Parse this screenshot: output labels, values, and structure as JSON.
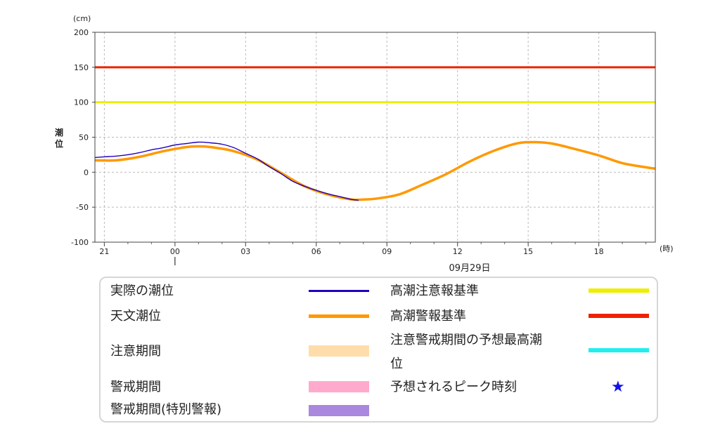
{
  "chart_data": {
    "type": "line",
    "y_unit": "(cm)",
    "x_unit": "(時)",
    "ylabel": "潮位",
    "ylim": [
      -100,
      200
    ],
    "yticks": [
      -100,
      -50,
      0,
      50,
      100,
      150,
      200
    ],
    "xlim": [
      -3.4,
      20.4
    ],
    "x_ticks": [
      {
        "hour": -3,
        "label": "21"
      },
      {
        "hour": 0,
        "label": "00"
      },
      {
        "hour": 3,
        "label": "03"
      },
      {
        "hour": 6,
        "label": "06"
      },
      {
        "hour": 9,
        "label": "09"
      },
      {
        "hour": 12,
        "label": "12"
      },
      {
        "hour": 15,
        "label": "15"
      },
      {
        "hour": 18,
        "label": "18"
      }
    ],
    "date_label": "09月29日",
    "date_marker_hour": 0,
    "grid": true,
    "thresholds": [
      {
        "name": "高潮警報基準",
        "value": 150,
        "color": "#ee2200"
      },
      {
        "name": "高潮注意報基準",
        "value": 100,
        "color": "#eeee00"
      }
    ],
    "series": [
      {
        "name": "天文潮位",
        "color": "#ff9900",
        "x": [
          -3.4,
          -2.5,
          -1.5,
          -0.5,
          0.5,
          1.0,
          1.5,
          2.5,
          3.5,
          4.5,
          5.5,
          6.5,
          7.5,
          8.0,
          8.5,
          9.5,
          10.5,
          11.5,
          12.5,
          13.5,
          14.5,
          15.2,
          16.0,
          17.0,
          18.0,
          19.0,
          20.0,
          20.4
        ],
        "values": [
          17,
          17,
          22,
          30,
          36,
          37,
          36,
          30,
          18,
          -1,
          -20,
          -32,
          -39,
          -39,
          -38,
          -32,
          -18,
          -3,
          15,
          30,
          41,
          43,
          41,
          33,
          24,
          13,
          7,
          5
        ]
      },
      {
        "name": "実際の潮位",
        "color": "#2200bb",
        "x": [
          -3.4,
          -3.0,
          -2.5,
          -2.0,
          -1.5,
          -1.0,
          -0.5,
          0.0,
          0.5,
          1.0,
          1.5,
          2.0,
          2.5,
          3.0,
          3.5,
          4.0,
          4.5,
          5.0,
          5.5,
          6.0,
          6.5,
          7.0,
          7.5,
          7.8
        ],
        "values": [
          21,
          22,
          23,
          25,
          28,
          32,
          35,
          39,
          41,
          43,
          42,
          40,
          35,
          27,
          19,
          8,
          -2,
          -13,
          -20,
          -26,
          -31,
          -35,
          -39,
          -40
        ]
      }
    ]
  },
  "legend": {
    "actual": "実際の潮位",
    "astronomical": "天文潮位",
    "caution_period": "注意期間",
    "warning_period": "警戒期間",
    "warning_special": "警戒期間(特別警報)",
    "caution_standard": "高潮注意報基準",
    "warning_standard": "高潮警報基準",
    "forecast_max_1": "注意警戒期間の予想最高潮",
    "forecast_max_2": "位",
    "peak_time": "予想されるピーク時刻",
    "star": "★",
    "colors": {
      "actual": "#2200bb",
      "astronomical": "#ff9900",
      "caution_period": "#ffddaa",
      "warning_period": "#ffaacc",
      "warning_special": "#aa88dd",
      "caution_standard": "#eeee00",
      "warning_standard": "#ee2200",
      "forecast_max": "#22eeee",
      "star": "#1111ee"
    }
  }
}
